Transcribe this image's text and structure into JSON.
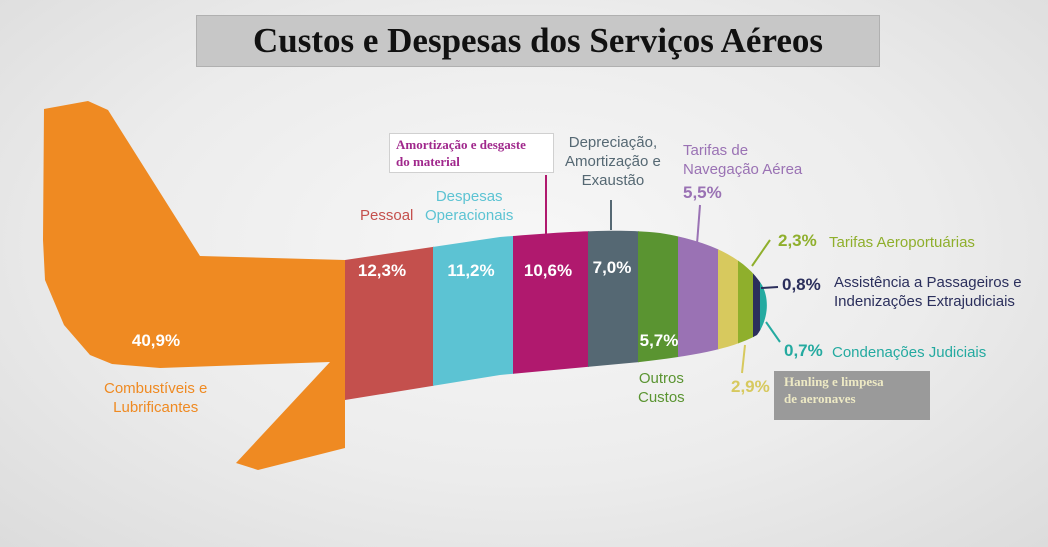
{
  "chart_data": {
    "type": "bar",
    "title": "Custos e Despesas dos Serviços Aéreos",
    "segments": [
      {
        "key": "combustiveis",
        "label": "Combustíveis e Lubrificantes",
        "value_label": "40,9%",
        "value": 40.9,
        "color": "#ef8a22"
      },
      {
        "key": "pessoal",
        "label": "Pessoal",
        "value_label": "12,3%",
        "value": 12.3,
        "color": "#c4504d"
      },
      {
        "key": "despesas_operacionais",
        "label": "Despesas Operacionais",
        "value_label": "11,2%",
        "value": 11.2,
        "color": "#5cc3d3"
      },
      {
        "key": "amortizacao_desgaste",
        "label": "Amortização e desgaste do material",
        "value_label": "10,6%",
        "value": 10.6,
        "color": "#b0196e"
      },
      {
        "key": "depreciacao",
        "label": "Depreciação, Amortização e Exaustão",
        "value_label": "7,0%",
        "value": 7.0,
        "color": "#556873"
      },
      {
        "key": "outros_custos",
        "label": "Outros Custos",
        "value_label": "5,7%",
        "value": 5.7,
        "color": "#5a9431"
      },
      {
        "key": "tarifas_navegacao",
        "label": "Tarifas de Navegação Aérea",
        "value_label": "5,5%",
        "value": 5.5,
        "color": "#9a72b4"
      },
      {
        "key": "handling",
        "label": "Hanling e limpesa de aeronaves",
        "value_label": "2,9%",
        "value": 2.9,
        "color": "#d7c95e"
      },
      {
        "key": "tarifas_aeroportuarias",
        "label": "Tarifas Aeroportuárias",
        "value_label": "2,3%",
        "value": 2.3,
        "color": "#8faf2c"
      },
      {
        "key": "assistencia",
        "label": "Assistência a Passageiros e Indenizações Extrajudiciais",
        "value_label": "0,8%",
        "value": 0.8,
        "color": "#2b2f5c"
      },
      {
        "key": "condenacoes",
        "label": "Condenações Judiciais",
        "value_label": "0,7%",
        "value": 0.7,
        "color": "#24aaa0"
      }
    ]
  },
  "labels": {
    "combustiveis_1": "Combustíveis e",
    "combustiveis_2": "Lubrificantes",
    "pessoal": "Pessoal",
    "despesas_1": "Despesas",
    "despesas_2": "Operacionais",
    "amortizacao_1": "Amortização e desgaste",
    "amortizacao_2": "do material",
    "depreciacao_1": "Depreciação,",
    "depreciacao_2": "Amortização e",
    "depreciacao_3": "Exaustão",
    "tarifas_nav_1": "Tarifas de",
    "tarifas_nav_2": "Navegação Aérea",
    "outros_1": "Outros",
    "outros_2": "Custos",
    "handling_1": "Hanling e limpesa",
    "handling_2": "de aeronaves",
    "tarifas_aero": "Tarifas Aeroportuárias",
    "assistencia_1": "Assistência a Passageiros e",
    "assistencia_2": "Indenizações Extrajudiciais",
    "condenacoes": "Condenações Judiciais"
  }
}
